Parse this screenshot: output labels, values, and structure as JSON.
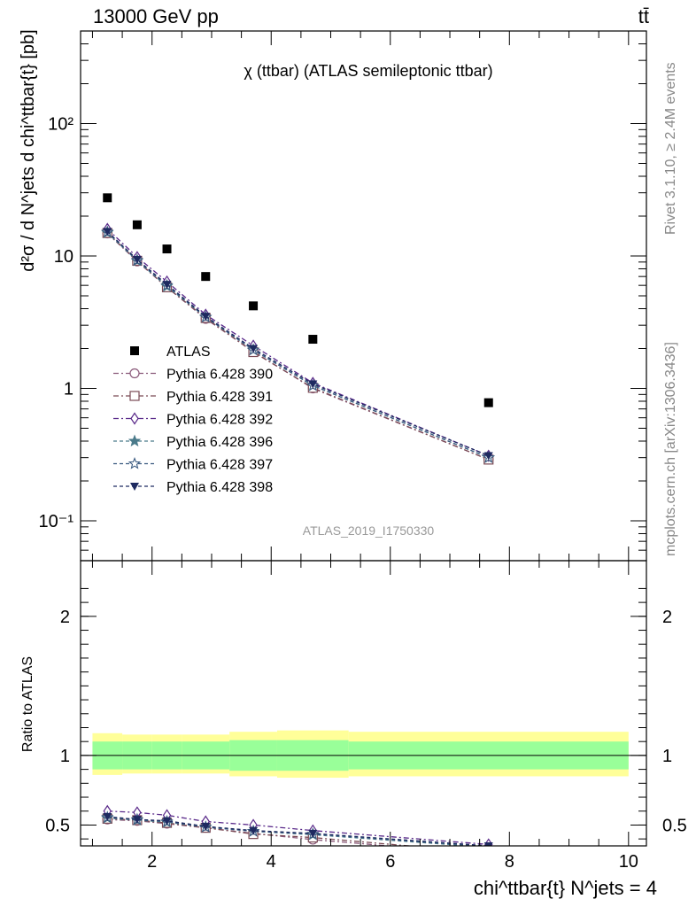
{
  "header": {
    "energy": "13000 GeV pp",
    "process": "tt̄"
  },
  "side_labels": {
    "rivet": "Rivet 3.1.10, ≥ 2.4M events",
    "mcplots": "mcplots.cern.ch [arXiv:1306.3436]"
  },
  "colors": {
    "data": "#000000",
    "s390": "#8a5a7a",
    "s391": "#7a4a55",
    "s392": "#5a2a8a",
    "s396": "#4a7a8a",
    "s397": "#3a5a80",
    "s398": "#1e2a60",
    "band_inner": "#99ff99",
    "band_outer": "#ffff99"
  },
  "chart_data": [
    {
      "type": "scatter",
      "title": "χ (ttbar) (ATLAS semileptonic ttbar)",
      "watermark": "ATLAS_2019_I1750330",
      "ylabel": "d²σ / d N^jets d chi^ttbar{t} [pb]",
      "yscale": "log",
      "xlim": [
        0.8,
        10.3
      ],
      "ylim": [
        0.05,
        500
      ],
      "y_ticks": [
        {
          "value": 100,
          "label": "10²"
        },
        {
          "value": 10,
          "label": "10"
        },
        {
          "value": 1,
          "label": "1"
        },
        {
          "value": 0.1,
          "label": "10⁻¹"
        }
      ],
      "legend_position": "center-left",
      "x": [
        1.25,
        1.75,
        2.25,
        2.9,
        3.7,
        4.7,
        7.65
      ],
      "series": [
        {
          "name": "ATLAS",
          "marker": "square-filled",
          "values": [
            27.5,
            17.2,
            11.3,
            7.0,
            4.2,
            2.35,
            0.78
          ]
        },
        {
          "name": "Pythia 6.428 390",
          "marker": "circle-open",
          "values": [
            14.8,
            9.1,
            5.8,
            3.35,
            1.9,
            1.0,
            0.29
          ]
        },
        {
          "name": "Pythia 6.428 391",
          "marker": "square-open",
          "values": [
            14.9,
            9.2,
            5.8,
            3.4,
            1.88,
            1.01,
            0.29
          ]
        },
        {
          "name": "Pythia 6.428 392",
          "marker": "diamond-open",
          "values": [
            16.0,
            9.8,
            6.4,
            3.6,
            2.1,
            1.1,
            0.31
          ]
        },
        {
          "name": "Pythia 6.428 396",
          "marker": "star-filled",
          "values": [
            15.0,
            9.2,
            5.9,
            3.45,
            1.95,
            1.05,
            0.3
          ]
        },
        {
          "name": "Pythia 6.428 397",
          "marker": "star-open",
          "values": [
            15.2,
            9.3,
            6.0,
            3.45,
            1.95,
            1.05,
            0.3
          ]
        },
        {
          "name": "Pythia 6.428 398",
          "marker": "triangle-down-filled",
          "values": [
            15.3,
            9.4,
            6.1,
            3.5,
            2.0,
            1.08,
            0.31
          ]
        }
      ]
    },
    {
      "type": "line",
      "ylabel": "Ratio to ATLAS",
      "xlabel": "chi^ttbar{t} N^jets = 4",
      "xlim": [
        0.8,
        10.3
      ],
      "ylim": [
        0.35,
        2.4
      ],
      "x_ticks": [
        2,
        4,
        6,
        8,
        10
      ],
      "y_ticks": [
        {
          "value": 0.5,
          "label": "0.5"
        },
        {
          "value": 1,
          "label": "1"
        },
        {
          "value": 2,
          "label": "2"
        }
      ],
      "bands": [
        {
          "x0": 1.0,
          "x1": 1.5,
          "inner": [
            0.9,
            1.1
          ],
          "outer": [
            0.86,
            1.16
          ]
        },
        {
          "x0": 1.5,
          "x1": 2.0,
          "inner": [
            0.9,
            1.1
          ],
          "outer": [
            0.87,
            1.15
          ]
        },
        {
          "x0": 2.0,
          "x1": 2.5,
          "inner": [
            0.9,
            1.1
          ],
          "outer": [
            0.87,
            1.15
          ]
        },
        {
          "x0": 2.5,
          "x1": 3.3,
          "inner": [
            0.9,
            1.1
          ],
          "outer": [
            0.87,
            1.15
          ]
        },
        {
          "x0": 3.3,
          "x1": 4.1,
          "inner": [
            0.89,
            1.11
          ],
          "outer": [
            0.85,
            1.17
          ]
        },
        {
          "x0": 4.1,
          "x1": 5.3,
          "inner": [
            0.89,
            1.11
          ],
          "outer": [
            0.84,
            1.18
          ]
        },
        {
          "x0": 5.3,
          "x1": 10.0,
          "inner": [
            0.9,
            1.1
          ],
          "outer": [
            0.85,
            1.17
          ]
        }
      ],
      "x": [
        1.25,
        1.75,
        2.25,
        2.9,
        3.7,
        4.7,
        7.65
      ],
      "series": [
        {
          "name": "Pythia 6.428 390",
          "marker": "circle-open",
          "values": [
            0.54,
            0.53,
            0.51,
            0.48,
            0.44,
            0.395,
            0.29
          ]
        },
        {
          "name": "Pythia 6.428 391",
          "marker": "square-open",
          "values": [
            0.545,
            0.535,
            0.515,
            0.48,
            0.435,
            0.41,
            0.3
          ]
        },
        {
          "name": "Pythia 6.428 392",
          "marker": "diamond-open",
          "values": [
            0.6,
            0.59,
            0.57,
            0.525,
            0.5,
            0.46,
            0.36
          ]
        },
        {
          "name": "Pythia 6.428 396",
          "marker": "star-filled",
          "values": [
            0.55,
            0.535,
            0.52,
            0.485,
            0.455,
            0.43,
            0.34
          ]
        },
        {
          "name": "Pythia 6.428 397",
          "marker": "star-open",
          "values": [
            0.555,
            0.54,
            0.525,
            0.485,
            0.455,
            0.435,
            0.345
          ]
        },
        {
          "name": "Pythia 6.428 398",
          "marker": "triangle-down-filled",
          "values": [
            0.56,
            0.54,
            0.53,
            0.49,
            0.46,
            0.44,
            0.35
          ]
        }
      ]
    }
  ]
}
